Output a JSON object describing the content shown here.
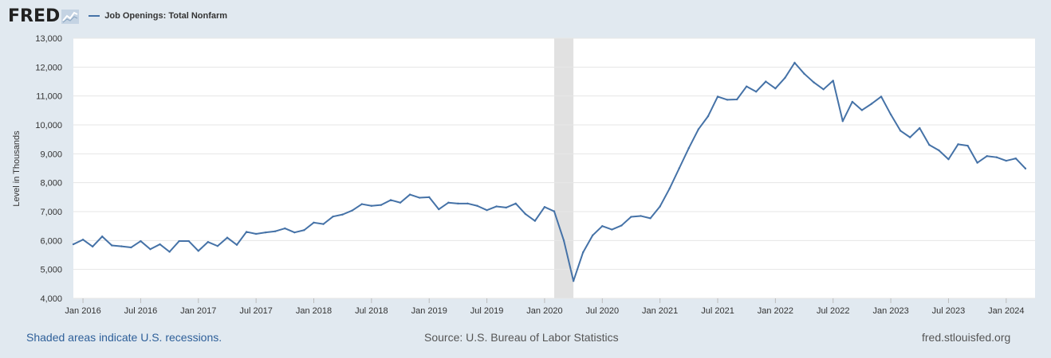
{
  "header": {
    "logo_text": "FRED",
    "logo_icon": "fred-line-graph-icon",
    "legend_label": "Job Openings: Total Nonfarm",
    "legend_color": "#4572a7"
  },
  "footer": {
    "recession_note": "Shaded areas indicate U.S. recessions.",
    "source": "Source: U.S. Bureau of Labor Statistics",
    "site": "fred.stlouisfed.org"
  },
  "chart_data": {
    "type": "line",
    "title": "",
    "xlabel": "",
    "ylabel": "Level in Thousands",
    "ylim": [
      4000,
      13000
    ],
    "xlim": [
      "2015-12",
      "2024-04"
    ],
    "grid": true,
    "line_color": "#4572a7",
    "recession_shading": [
      {
        "start": "2020-02",
        "end": "2020-04",
        "color": "#e1e1e1"
      }
    ],
    "y_ticks": [
      {
        "value": 4000,
        "label": "4,000"
      },
      {
        "value": 5000,
        "label": "5,000"
      },
      {
        "value": 6000,
        "label": "6,000"
      },
      {
        "value": 7000,
        "label": "7,000"
      },
      {
        "value": 8000,
        "label": "8,000"
      },
      {
        "value": 9000,
        "label": "9,000"
      },
      {
        "value": 10000,
        "label": "10,000"
      },
      {
        "value": 11000,
        "label": "11,000"
      },
      {
        "value": 12000,
        "label": "12,000"
      },
      {
        "value": 13000,
        "label": "13,000"
      }
    ],
    "x_ticks": [
      {
        "date": "2016-01",
        "label": "Jan 2016"
      },
      {
        "date": "2016-07",
        "label": "Jul 2016"
      },
      {
        "date": "2017-01",
        "label": "Jan 2017"
      },
      {
        "date": "2017-07",
        "label": "Jul 2017"
      },
      {
        "date": "2018-01",
        "label": "Jan 2018"
      },
      {
        "date": "2018-07",
        "label": "Jul 2018"
      },
      {
        "date": "2019-01",
        "label": "Jan 2019"
      },
      {
        "date": "2019-07",
        "label": "Jul 2019"
      },
      {
        "date": "2020-01",
        "label": "Jan 2020"
      },
      {
        "date": "2020-07",
        "label": "Jul 2020"
      },
      {
        "date": "2021-01",
        "label": "Jan 2021"
      },
      {
        "date": "2021-07",
        "label": "Jul 2021"
      },
      {
        "date": "2022-01",
        "label": "Jan 2022"
      },
      {
        "date": "2022-07",
        "label": "Jul 2022"
      },
      {
        "date": "2023-01",
        "label": "Jan 2023"
      },
      {
        "date": "2023-07",
        "label": "Jul 2023"
      },
      {
        "date": "2024-01",
        "label": "Jan 2024"
      }
    ],
    "series": [
      {
        "start": "2015-12",
        "frequency": "monthly",
        "values": [
          5870,
          6030,
          5790,
          6140,
          5830,
          5800,
          5760,
          5980,
          5700,
          5870,
          5610,
          5980,
          5980,
          5640,
          5950,
          5810,
          6100,
          5850,
          6300,
          6230,
          6280,
          6320,
          6420,
          6280,
          6360,
          6620,
          6570,
          6830,
          6900,
          7040,
          7260,
          7200,
          7230,
          7400,
          7310,
          7590,
          7480,
          7500,
          7080,
          7310,
          7280,
          7280,
          7200,
          7050,
          7180,
          7140,
          7280,
          6920,
          6680,
          7160,
          7010,
          6000,
          4600,
          5590,
          6180,
          6500,
          6380,
          6520,
          6820,
          6850,
          6770,
          7180,
          7800,
          8500,
          9200,
          9850,
          10300,
          10980,
          10870,
          10880,
          11330,
          11150,
          11500,
          11260,
          11630,
          12150,
          11770,
          11470,
          11230,
          11530,
          10130,
          10800,
          10510,
          10730,
          10980,
          10360,
          9800,
          9570,
          9890,
          9310,
          9120,
          8810,
          9330,
          9280,
          8690,
          8920,
          8880,
          8760,
          8840,
          8490
        ]
      }
    ]
  }
}
